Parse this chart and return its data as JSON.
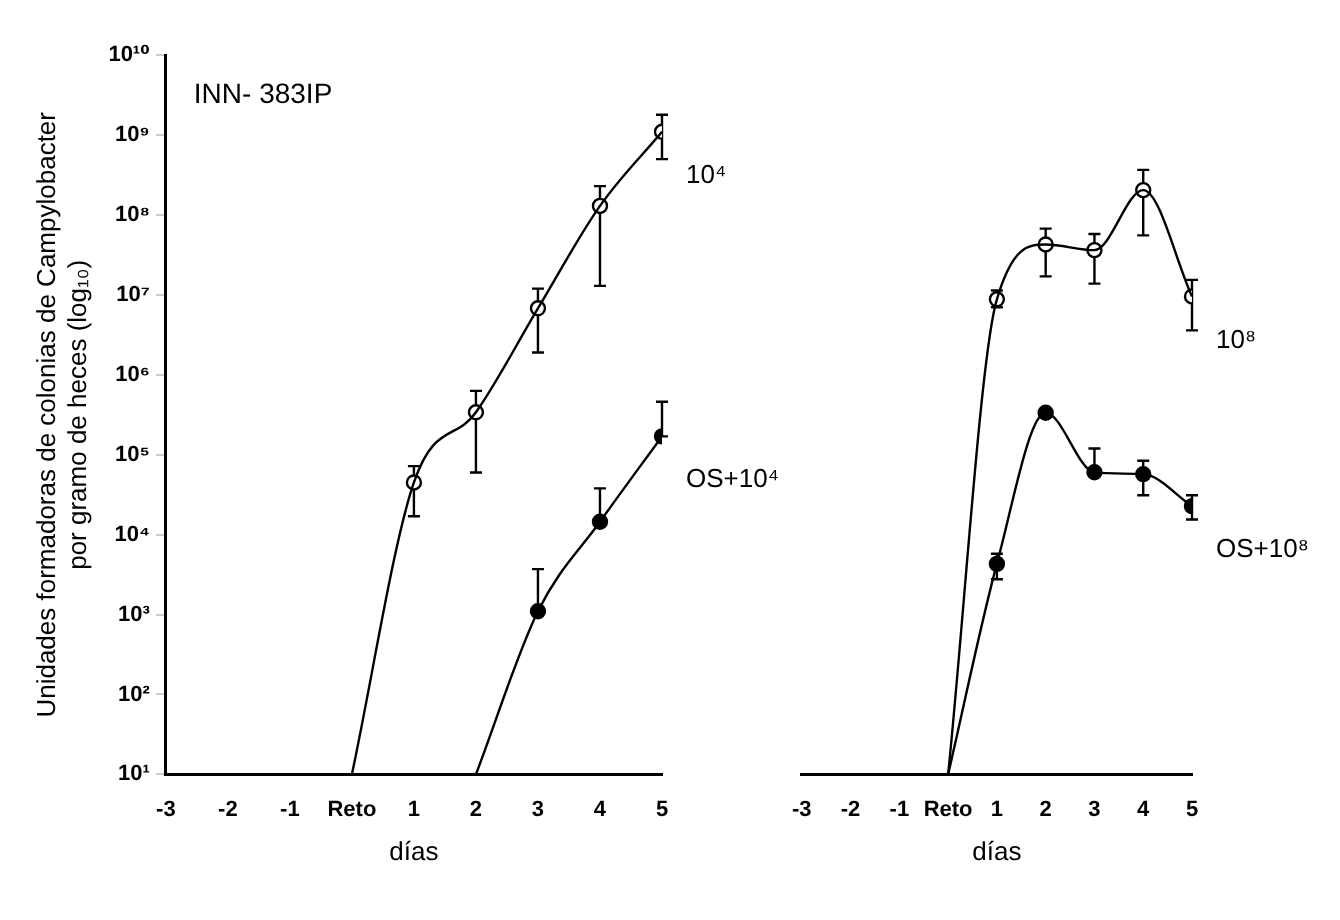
{
  "chart_data": [
    {
      "type": "line",
      "xlabel": "días",
      "ylabel": "Unidades formadoras de colonias de Campylobacter por gramo de heces (log₁₀)",
      "annotations": [
        "INN- 383IP"
      ],
      "xlim": [
        -3,
        5
      ],
      "xticks": [
        -3,
        -2,
        -1,
        {
          "value": 0,
          "label": "Reto"
        },
        1,
        2,
        3,
        4,
        5
      ],
      "ylim": [
        10,
        10000000000
      ],
      "yticks": [
        {
          "value": 10,
          "label": "10¹"
        },
        {
          "value": 100,
          "label": "10²"
        },
        {
          "value": 1000,
          "label": "10³"
        },
        {
          "value": 10000,
          "label": "10⁴"
        },
        {
          "value": 100000,
          "label": "10⁵"
        },
        {
          "value": 1000000,
          "label": "10⁶"
        },
        {
          "value": 10000000,
          "label": "10⁷"
        },
        {
          "value": 100000000,
          "label": "10⁸"
        },
        {
          "value": 1000000000,
          "label": "10⁹"
        },
        {
          "value": 10000000000,
          "label": "10¹⁰"
        }
      ],
      "log": "y",
      "grid": false,
      "legend": false,
      "marker": "circle",
      "series": [
        {
          "type": "line",
          "marker": "none",
          "color": "#000000",
          "x": [
            0,
            1,
            2,
            3,
            4,
            5
          ],
          "values": [
            10,
            45000,
            340000,
            6800000,
            130000000,
            1100000000
          ]
        },
        {
          "type": "line",
          "marker": "none",
          "color": "#000000",
          "x": [
            2,
            3,
            4,
            5
          ],
          "values": [
            10,
            1100,
            14500,
            170000
          ]
        },
        {
          "type": "scatter",
          "name": "10⁴",
          "color": "#ffffff",
          "x": [
            1,
            2,
            3,
            4,
            5
          ],
          "values": [
            45000,
            340000,
            6800000,
            130000000,
            1100000000
          ],
          "errors": [
            [
              17000,
              72000
            ],
            [
              60000,
              630000
            ],
            [
              1900000,
              12000000
            ],
            [
              13000000,
              230000000
            ],
            [
              500000000,
              1800000000
            ]
          ]
        },
        {
          "type": "scatter",
          "name": "OS+10⁴",
          "color": "#000000",
          "x": [
            3,
            4,
            5
          ],
          "values": [
            1100,
            14500,
            170000
          ],
          "errors": [
            [
              1100,
              3700
            ],
            [
              14500,
              38000
            ],
            [
              170000,
              460000
            ]
          ]
        }
      ]
    },
    {
      "type": "line",
      "xlabel": "días",
      "tick_labels": "x",
      "xlim": [
        -3,
        5
      ],
      "xticks": [
        -3,
        -2,
        -1,
        {
          "value": 0,
          "label": "Reto"
        },
        1,
        2,
        3,
        4,
        5
      ],
      "ylim": [
        10,
        10000000000
      ],
      "log": "y",
      "grid": false,
      "legend": false,
      "marker": "circle",
      "series": [
        {
          "type": "line",
          "marker": "none",
          "color": "#000000",
          "x": [
            0,
            1,
            2,
            3,
            4,
            5
          ],
          "values": [
            10,
            8300000,
            40000000,
            34000000,
            190000000,
            9000000
          ]
        },
        {
          "type": "line",
          "marker": "none",
          "color": "#000000",
          "x": [
            0,
            1,
            2,
            3,
            4,
            5
          ],
          "values": [
            10,
            4200,
            320000,
            58000,
            55000,
            22000
          ]
        },
        {
          "type": "scatter",
          "name": "10⁸",
          "color": "#ffffff",
          "x": [
            1,
            2,
            3,
            4,
            5
          ],
          "values": [
            8300000,
            40000000,
            34000000,
            190000000,
            9000000
          ],
          "errors": [
            [
              6600000,
              10700000
            ],
            [
              16000000,
              63000000
            ],
            [
              13000000,
              54000000
            ],
            [
              52000000,
              340000000
            ],
            [
              3400000,
              14500000
            ]
          ]
        },
        {
          "type": "scatter",
          "name": "OS+10⁸",
          "color": "#000000",
          "x": [
            1,
            2,
            3,
            4,
            5
          ],
          "values": [
            4200,
            320000,
            58000,
            55000,
            22000
          ],
          "errors": [
            [
              2700,
              5600
            ],
            null,
            [
              58000,
              115000
            ],
            [
              30000,
              81000
            ],
            [
              15000,
              30000
            ]
          ]
        }
      ]
    }
  ]
}
